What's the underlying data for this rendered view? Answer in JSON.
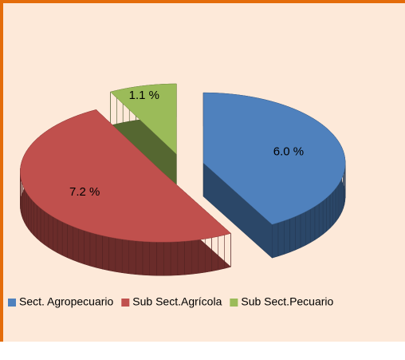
{
  "chart_data": {
    "type": "pie",
    "categories": [
      "Sect. Agropecuario",
      "Sub Sect.Agrícola",
      "Sub Sect.Pecuario"
    ],
    "values": [
      6.0,
      7.2,
      1.1
    ],
    "value_labels": [
      "6.0 %",
      "7.2 %",
      "1.1 %"
    ],
    "colors": [
      "#4f81bd",
      "#c0504d",
      "#9bbb59"
    ],
    "legend": "bottom"
  }
}
